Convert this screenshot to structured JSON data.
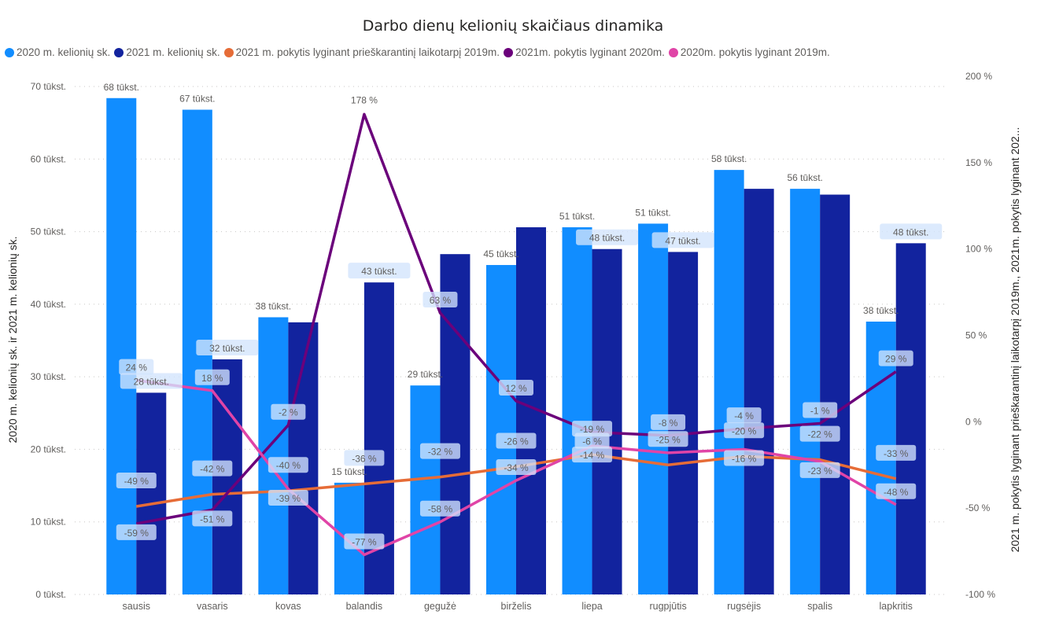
{
  "chart_data": {
    "type": "bar",
    "title": "Darbo dienų kelionių skaičiaus dinamika",
    "xlabel": "",
    "ylabel": "2020 m. kelionių sk. ir 2021 m. kelionių sk.",
    "y2label": "2021 m. pokytis lyginant prieškarantinį laikotarpį 2019m., 2021m. pokytis lyginant 202...",
    "ylim": [
      0,
      70
    ],
    "y2lim": [
      -100,
      200
    ],
    "yticks": [
      "0 tūkst.",
      "10 tūkst.",
      "20 tūkst.",
      "30 tūkst.",
      "40 tūkst.",
      "50 tūkst.",
      "60 tūkst.",
      "70 tūkst."
    ],
    "y2ticks": [
      "-100 %",
      "-50 %",
      "0 %",
      "50 %",
      "100 %",
      "150 %",
      "200 %"
    ],
    "grid": true,
    "legend_position": "top-left",
    "categories": [
      "sausis",
      "vasaris",
      "kovas",
      "balandis",
      "gegužė",
      "birželis",
      "liepa",
      "rugpjūtis",
      "rugsėjis",
      "spalis",
      "lapkritis"
    ],
    "series": [
      {
        "name": "2020 m. kelionių sk.",
        "type": "bar",
        "axis": "left",
        "color": "#118dff",
        "values": [
          68.4,
          66.8,
          38.2,
          15.4,
          28.8,
          45.4,
          50.6,
          51.1,
          58.5,
          55.9,
          37.6
        ],
        "labels": [
          "68 tūkst.",
          "67 tūkst.",
          "38 tūkst.",
          "15 tūkst.",
          "29 tūkst.",
          "45 tūkst.",
          "51 tūkst.",
          "51 tūkst.",
          "58 tūkst.",
          "56 tūkst.",
          "38 tūkst."
        ]
      },
      {
        "name": "2021 m. kelionių sk.",
        "type": "bar",
        "axis": "left",
        "color": "#12239e",
        "values": [
          27.8,
          32.4,
          37.5,
          43.0,
          46.9,
          50.6,
          47.6,
          47.2,
          55.9,
          55.1,
          48.4
        ],
        "labels": [
          "28 tūkst.",
          "32 tūkst.",
          "",
          "43 tūkst.",
          "",
          "",
          "48 tūkst.",
          "47 tūkst.",
          "",
          "",
          "48 tūkst."
        ]
      },
      {
        "name": "2021 m. pokytis lyginant prieškarantinį laikotarpį 2019m.",
        "type": "line",
        "axis": "right",
        "color": "#e66c37",
        "values": [
          -49,
          -42,
          -40,
          -36,
          -32,
          -26,
          -19,
          -25,
          -20,
          -22,
          -33
        ],
        "labels": [
          "-49 %",
          "-42 %",
          "-40 %",
          "-36 %",
          "-32 %",
          "-26 %",
          "-19 %",
          "-25 %",
          "-20 %",
          "-22 %",
          "-33 %"
        ]
      },
      {
        "name": "2021m. pokytis lyginant 2020m.",
        "type": "line",
        "axis": "right",
        "color": "#6b007b",
        "values": [
          -59,
          -51,
          -2,
          178,
          63,
          12,
          -6,
          -8,
          -4,
          -1,
          29
        ],
        "labels": [
          "-59 %",
          "-51 %",
          "-2 %",
          "178 %",
          "63 %",
          "12 %",
          "-6 %",
          "-8 %",
          "-4 %",
          "-1 %",
          "29 %"
        ]
      },
      {
        "name": "2020m. pokytis lyginant 2019m.",
        "type": "line",
        "axis": "right",
        "color": "#e044a7",
        "values": [
          24,
          18,
          -39,
          -77,
          -58,
          -34,
          -14,
          -18,
          -16,
          -23,
          -48
        ],
        "labels": [
          "24 %",
          "18 %",
          "-39 %",
          "-77 %",
          "-58 %",
          "-34 %",
          "-14 %",
          "",
          "-16 %",
          "-23 %",
          "-48 %"
        ]
      }
    ]
  }
}
